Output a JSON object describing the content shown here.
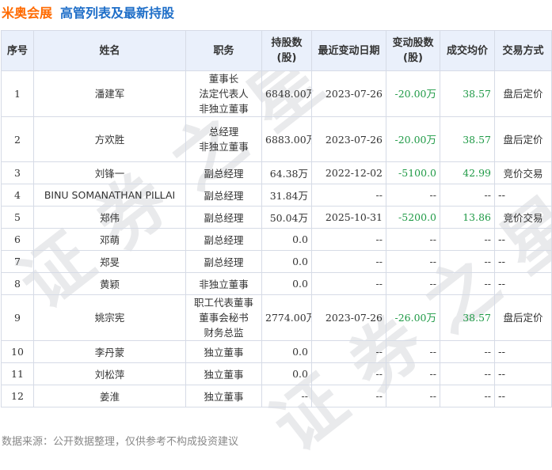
{
  "header": {
    "company": "米奥会展",
    "subtitle": "高管列表及最新持股"
  },
  "watermark": "证券之星",
  "columns": [
    "序号",
    "姓名",
    "职务",
    "持股数(股)",
    "最近变动日期",
    "变动股数(股)",
    "成交均价",
    "交易方式"
  ],
  "rows": [
    {
      "no": "1",
      "name": "潘建军",
      "duties": [
        "董事长",
        "法定代表人",
        "非独立董事"
      ],
      "shares": "6848.00万",
      "date": "2023-07-26",
      "change": "-20.00万",
      "price": "38.57",
      "method": "盘后定价"
    },
    {
      "no": "2",
      "name": "方欢胜",
      "duties": [
        "总经理",
        "非独立董事"
      ],
      "shares": "6883.00万",
      "date": "2023-07-26",
      "change": "-20.00万",
      "price": "38.57",
      "method": "盘后定价"
    },
    {
      "no": "3",
      "name": "刘锋一",
      "duties": [
        "副总经理"
      ],
      "shares": "64.38万",
      "date": "2022-12-02",
      "change": "-5100.0",
      "price": "42.99",
      "method": "竞价交易"
    },
    {
      "no": "4",
      "name": "BINU SOMANATHAN PILLAI",
      "duties": [
        "副总经理"
      ],
      "shares": "31.84万",
      "date": "--",
      "change": "--",
      "price": "--",
      "method": "--"
    },
    {
      "no": "5",
      "name": "郑伟",
      "duties": [
        "副总经理"
      ],
      "shares": "50.04万",
      "date": "2025-10-31",
      "change": "-5200.0",
      "price": "13.86",
      "method": "竞价交易"
    },
    {
      "no": "6",
      "name": "邓萌",
      "duties": [
        "副总经理"
      ],
      "shares": "0.0",
      "date": "--",
      "change": "--",
      "price": "--",
      "method": "--"
    },
    {
      "no": "7",
      "name": "郑旻",
      "duties": [
        "副总经理"
      ],
      "shares": "0.0",
      "date": "--",
      "change": "--",
      "price": "--",
      "method": "--"
    },
    {
      "no": "8",
      "name": "黄颖",
      "duties": [
        "非独立董事"
      ],
      "shares": "0.0",
      "date": "--",
      "change": "--",
      "price": "--",
      "method": "--"
    },
    {
      "no": "9",
      "name": "姚宗宪",
      "duties": [
        "职工代表董事",
        "董事会秘书",
        "财务总监"
      ],
      "shares": "2774.00万",
      "date": "2023-07-26",
      "change": "-26.00万",
      "price": "38.57",
      "method": "盘后定价"
    },
    {
      "no": "10",
      "name": "李丹蒙",
      "duties": [
        "独立董事"
      ],
      "shares": "0.0",
      "date": "--",
      "change": "--",
      "price": "--",
      "method": "--"
    },
    {
      "no": "11",
      "name": "刘松萍",
      "duties": [
        "独立董事"
      ],
      "shares": "0.0",
      "date": "--",
      "change": "--",
      "price": "--",
      "method": "--"
    },
    {
      "no": "12",
      "name": "姜淮",
      "duties": [
        "独立董事"
      ],
      "shares": "--",
      "date": "--",
      "change": "--",
      "price": "--",
      "method": "--"
    }
  ],
  "footer": "数据来源：公开数据整理，仅供参考不构成投资建议"
}
